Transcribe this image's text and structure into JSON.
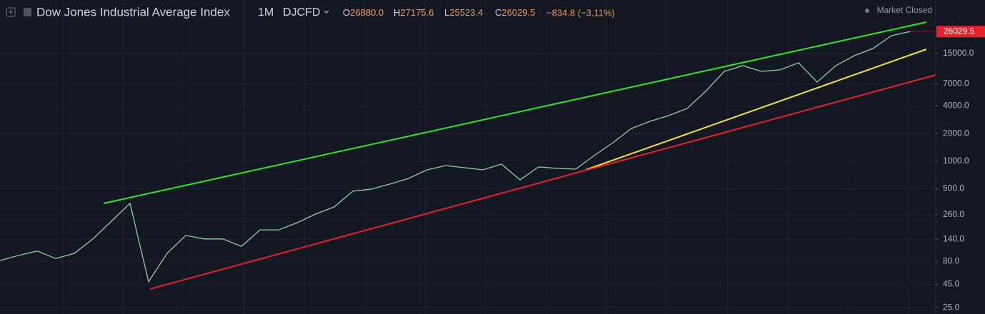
{
  "header": {
    "title": "Dow Jones Industrial Average Index",
    "interval": "1M",
    "source": "DJCFD",
    "open": {
      "label": "O",
      "value": "26880.0"
    },
    "high": {
      "label": "H",
      "value": "27175.6"
    },
    "low": {
      "label": "L",
      "value": "25523.4"
    },
    "close": {
      "label": "C",
      "value": "26029.5"
    },
    "change": "−834.8 (−3.11%)",
    "status": "Market Closed"
  },
  "chart_data": {
    "type": "line",
    "log_scale": true,
    "grid": true,
    "ylim": [
      21.3,
      57700
    ],
    "yticks": [
      {
        "value": 25,
        "label": "25.0"
      },
      {
        "value": 45,
        "label": "45.0"
      },
      {
        "value": 80,
        "label": "80.0"
      },
      {
        "value": 140,
        "label": "140.0"
      },
      {
        "value": 260,
        "label": "260.0"
      },
      {
        "value": 500,
        "label": "500.0"
      },
      {
        "value": 1000,
        "label": "1000.0"
      },
      {
        "value": 2000,
        "label": "2000.0"
      },
      {
        "value": 4000,
        "label": "4000.0"
      },
      {
        "value": 7000,
        "label": "7000.0"
      },
      {
        "value": 15000,
        "label": "15000.0"
      }
    ],
    "series": [
      {
        "color": "#8fd19e",
        "values": [
          82,
          93,
          104,
          86,
          98,
          141,
          220,
          345,
          48,
          98,
          154,
          141,
          141,
          117,
          177,
          177,
          212,
          264,
          316,
          469,
          494,
          561,
          647,
          803,
          893,
          847,
          803,
          927,
          624,
          863,
          832,
          817,
          1151,
          1589,
          2275,
          2723,
          3141,
          3758,
          5794,
          9572,
          11040,
          9572,
          9931,
          11885,
          7311,
          11040,
          14223,
          17022,
          23496,
          26029.5
        ]
      }
    ]
  }
}
